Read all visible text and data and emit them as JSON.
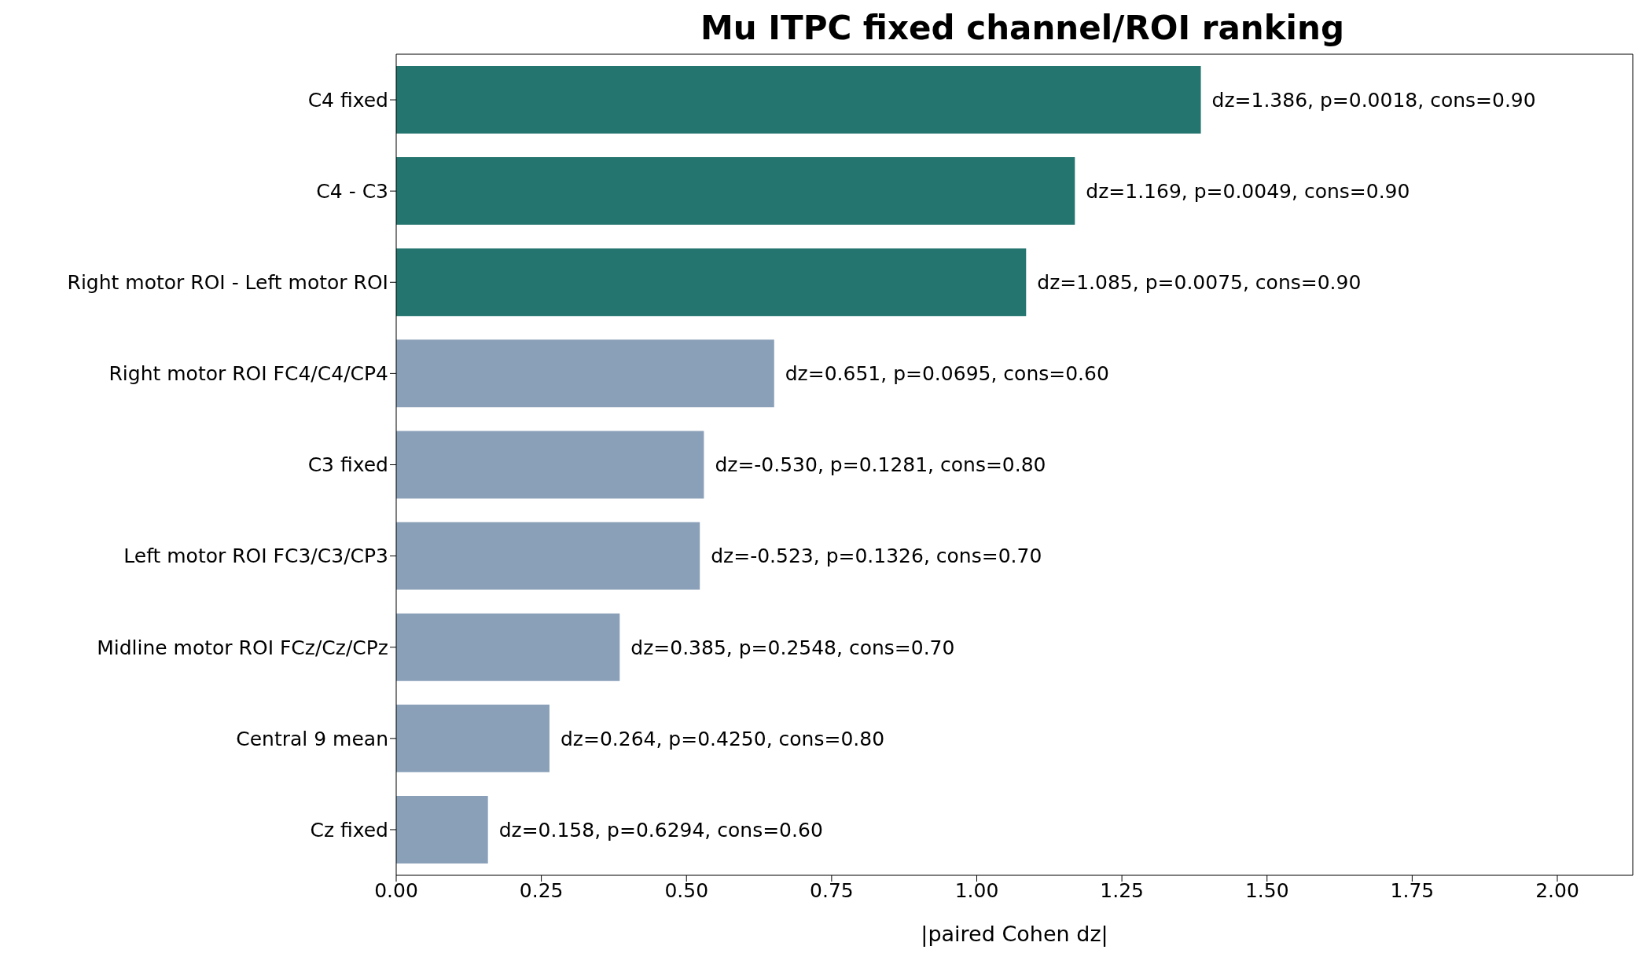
{
  "chart_data": {
    "type": "bar",
    "orientation": "horizontal",
    "title": "Mu ITPC fixed channel/ROI ranking",
    "xlabel": "|paired Cohen dz|",
    "categories": [
      "C4 fixed",
      "C4 - C3",
      "Right motor ROI - Left motor ROI",
      "Right motor ROI FC4/C4/CP4",
      "C3 fixed",
      "Left motor ROI FC3/C3/CP3",
      "Midline motor ROI FCz/Cz/CPz",
      "Central 9 mean",
      "Cz fixed"
    ],
    "values": [
      1.386,
      1.169,
      1.085,
      0.651,
      0.53,
      0.523,
      0.385,
      0.264,
      0.158
    ],
    "colors": [
      "#24756f",
      "#24756f",
      "#24756f",
      "#8aa0b8",
      "#8aa0b8",
      "#8aa0b8",
      "#8aa0b8",
      "#8aa0b8",
      "#8aa0b8"
    ],
    "value_labels": [
      "dz=1.386, p=0.0018, cons=0.90",
      "dz=1.169, p=0.0049, cons=0.90",
      "dz=1.085, p=0.0075, cons=0.90",
      "dz=0.651, p=0.0695, cons=0.60",
      "dz=-0.530, p=0.1281, cons=0.80",
      "dz=-0.523, p=0.1326, cons=0.70",
      "dz=0.385, p=0.2548, cons=0.70",
      "dz=0.264, p=0.4250, cons=0.80",
      "dz=0.158, p=0.6294, cons=0.60"
    ],
    "xlim": [
      0,
      2.13
    ],
    "xticks": [
      {
        "value": 0,
        "label": "0.00"
      },
      {
        "value": 0.25,
        "label": "0.25"
      },
      {
        "value": 0.5,
        "label": "0.50"
      },
      {
        "value": 0.75,
        "label": "0.75"
      },
      {
        "value": 1,
        "label": "1.00"
      },
      {
        "value": 1.25,
        "label": "1.25"
      },
      {
        "value": 1.5,
        "label": "1.50"
      },
      {
        "value": 1.75,
        "label": "1.75"
      },
      {
        "value": 2,
        "label": "2.00"
      }
    ],
    "grid": false
  }
}
